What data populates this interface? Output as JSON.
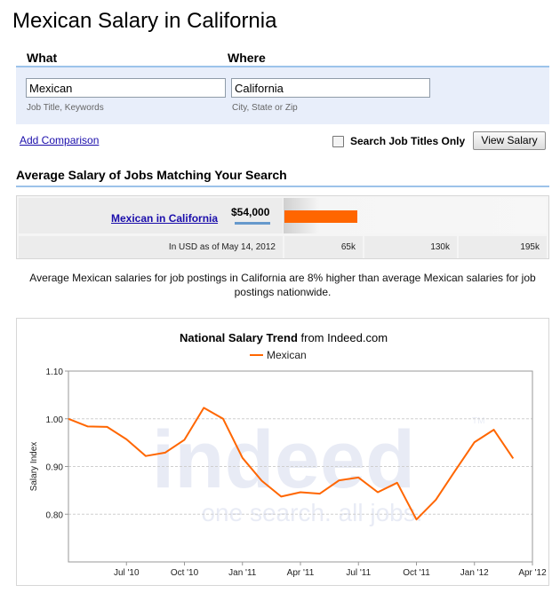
{
  "page": {
    "title": "Mexican Salary in California"
  },
  "search": {
    "what_label": "What",
    "where_label": "Where",
    "what_value": "Mexican",
    "where_value": "California",
    "what_hint": "Job Title, Keywords",
    "where_hint": "City, State or Zip",
    "add_comparison": "Add Comparison",
    "titles_only_label": "Search Job Titles Only",
    "titles_only_checked": false,
    "submit_label": "View Salary"
  },
  "results": {
    "heading": "Average Salary of Jobs Matching Your Search",
    "job_link": "Mexican in California",
    "salary": "$54,000",
    "salary_value": 54000,
    "bar_color": "#ff6600",
    "currency_note": "In USD as of May 14, 2012",
    "scale_ticks": [
      "65k",
      "130k",
      "195k"
    ],
    "summary": "Average Mexican salaries for job postings in California are 8% higher than average Mexican salaries for job postings nationwide."
  },
  "chart": {
    "title_bold": "National Salary Trend",
    "title_rest": " from Indeed.com",
    "watermark_brand": "indeed",
    "watermark_tm": "TM",
    "watermark_tagline": "one search. all jobs."
  },
  "chart_data": {
    "type": "line",
    "ylabel": "Salary Index",
    "ylim": [
      0.7,
      1.1
    ],
    "yticks": [
      0.8,
      0.9,
      1.0,
      1.1
    ],
    "ytick_labels": [
      "0.80",
      "0.90",
      "1.00",
      "1.10"
    ],
    "xtick_labels": [
      "Jul '10",
      "Oct '10",
      "Jan '11",
      "Apr '11",
      "Jul '11",
      "Oct '11",
      "Jan '12",
      "Apr '12"
    ],
    "grid": true,
    "legend": "top-center",
    "series": [
      {
        "name": "Mexican",
        "color": "#ff6600",
        "x": [
          "Apr '10",
          "May '10",
          "Jun '10",
          "Jul '10",
          "Aug '10",
          "Sep '10",
          "Oct '10",
          "Nov '10",
          "Dec '10",
          "Jan '11",
          "Feb '11",
          "Mar '11",
          "Apr '11",
          "May '11",
          "Jun '11",
          "Jul '11",
          "Aug '11",
          "Sep '11",
          "Oct '11",
          "Nov '11",
          "Dec '11",
          "Jan '12",
          "Feb '12",
          "Mar '12",
          "Apr '12"
        ],
        "values": [
          1.0,
          0.984,
          0.983,
          0.957,
          0.922,
          0.929,
          0.956,
          1.023,
          1.0,
          0.918,
          0.87,
          0.837,
          0.846,
          0.843,
          0.871,
          0.877,
          0.846,
          0.866,
          0.789,
          0.83,
          0.891,
          0.951,
          0.977,
          0.917,
          null
        ]
      }
    ]
  }
}
